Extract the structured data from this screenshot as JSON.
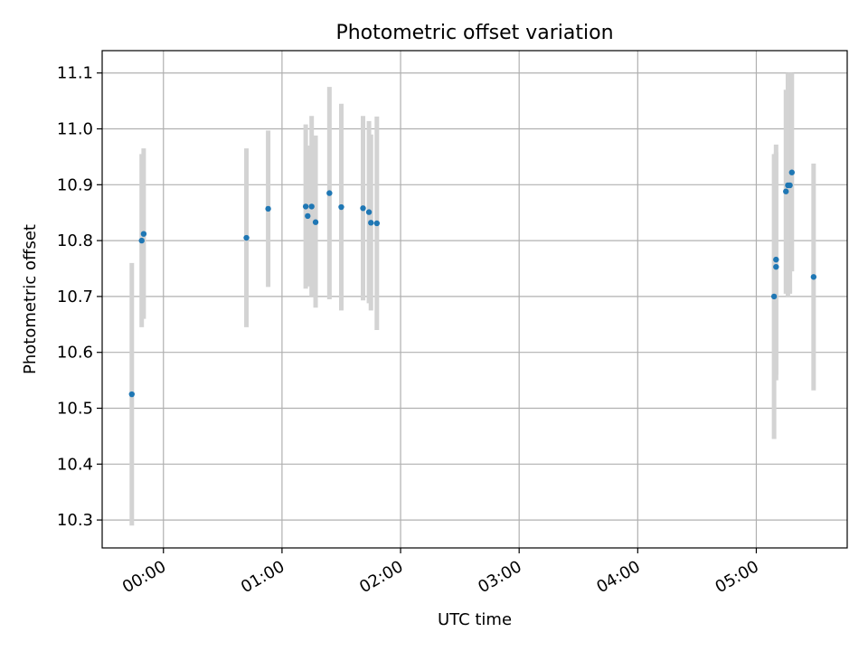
{
  "chart_data": {
    "type": "scatter",
    "title": "Photometric offset variation",
    "xlabel": "UTC time",
    "ylabel": "Photometric offset",
    "xlim": [
      "23:29",
      "05:46"
    ],
    "ylim": [
      10.25,
      11.14
    ],
    "grid": true,
    "x_ticks": [
      "00:00",
      "01:00",
      "02:00",
      "03:00",
      "04:00",
      "05:00"
    ],
    "y_ticks": [
      "10.3",
      "10.4",
      "10.5",
      "10.6",
      "10.7",
      "10.8",
      "10.9",
      "11.0",
      "11.1"
    ],
    "colors": {
      "points": "#1f77b4",
      "errorbars": "#d3d3d3",
      "grid": "#b0b0b0"
    },
    "points": [
      {
        "x": "23:44",
        "y": 10.525,
        "low": 10.29,
        "high": 10.76
      },
      {
        "x": "23:49",
        "y": 10.8,
        "low": 10.645,
        "high": 10.955
      },
      {
        "x": "23:50",
        "y": 10.812,
        "low": 10.66,
        "high": 10.965
      },
      {
        "x": "00:42",
        "y": 10.805,
        "low": 10.645,
        "high": 10.965
      },
      {
        "x": "00:53",
        "y": 10.857,
        "low": 10.717,
        "high": 10.997
      },
      {
        "x": "01:12",
        "y": 10.861,
        "low": 10.714,
        "high": 11.008
      },
      {
        "x": "01:13",
        "y": 10.844,
        "low": 10.718,
        "high": 10.97
      },
      {
        "x": "01:15",
        "y": 10.861,
        "low": 10.7,
        "high": 11.023
      },
      {
        "x": "01:17",
        "y": 10.833,
        "low": 10.68,
        "high": 10.988
      },
      {
        "x": "01:24",
        "y": 10.885,
        "low": 10.695,
        "high": 11.075
      },
      {
        "x": "01:30",
        "y": 10.86,
        "low": 10.675,
        "high": 11.045
      },
      {
        "x": "01:41",
        "y": 10.858,
        "low": 10.693,
        "high": 11.023
      },
      {
        "x": "01:44",
        "y": 10.851,
        "low": 10.688,
        "high": 11.014
      },
      {
        "x": "01:45",
        "y": 10.832,
        "low": 10.675,
        "high": 10.99
      },
      {
        "x": "01:48",
        "y": 10.831,
        "low": 10.64,
        "high": 11.022
      },
      {
        "x": "05:09",
        "y": 10.7,
        "low": 10.445,
        "high": 10.955
      },
      {
        "x": "05:10",
        "y": 10.753,
        "low": 10.55,
        "high": 10.958
      },
      {
        "x": "05:10",
        "y": 10.766,
        "low": 10.56,
        "high": 10.972
      },
      {
        "x": "05:15",
        "y": 10.888,
        "low": 10.705,
        "high": 11.07
      },
      {
        "x": "05:16",
        "y": 10.899,
        "low": 10.7,
        "high": 11.1
      },
      {
        "x": "05:17",
        "y": 10.899,
        "low": 10.705,
        "high": 11.1
      },
      {
        "x": "05:18",
        "y": 10.922,
        "low": 10.745,
        "high": 11.1
      },
      {
        "x": "05:29",
        "y": 10.735,
        "low": 10.532,
        "high": 10.938
      }
    ]
  }
}
